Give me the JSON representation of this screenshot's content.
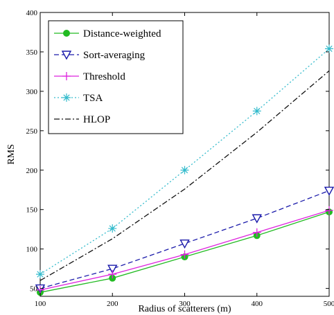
{
  "chart_data": {
    "type": "line",
    "xlabel": "Radius of scatterers (m)",
    "ylabel": "RMS",
    "x": [
      100,
      200,
      300,
      400,
      500
    ],
    "xlim": [
      100,
      500
    ],
    "ylim": [
      40,
      400
    ],
    "xticks": [
      100,
      200,
      300,
      400,
      500
    ],
    "yticks": [
      50,
      100,
      150,
      200,
      250,
      300,
      350,
      400
    ],
    "grid": false,
    "legend_position": "top-left",
    "series": [
      {
        "name": "Distance-weighted",
        "values": [
          45,
          63,
          90,
          117,
          147
        ],
        "color": "#22bb22",
        "marker": "filled-circle",
        "dash": "solid"
      },
      {
        "name": "Sort-averaging",
        "values": [
          50,
          75,
          107,
          139,
          174
        ],
        "color": "#1a1aaa",
        "marker": "down-triangle",
        "dash": "dashed"
      },
      {
        "name": "Threshold",
        "values": [
          48,
          68,
          93,
          121,
          149
        ],
        "color": "#dd22dd",
        "marker": "plus",
        "dash": "solid"
      },
      {
        "name": "TSA",
        "values": [
          68,
          126,
          200,
          275,
          354
        ],
        "color": "#33bbcc",
        "marker": "asterisk",
        "dash": "dotted"
      },
      {
        "name": "HLOP",
        "values": [
          60,
          113,
          176,
          248,
          326
        ],
        "color": "#111111",
        "marker": "none",
        "dash": "dashdot"
      }
    ]
  }
}
